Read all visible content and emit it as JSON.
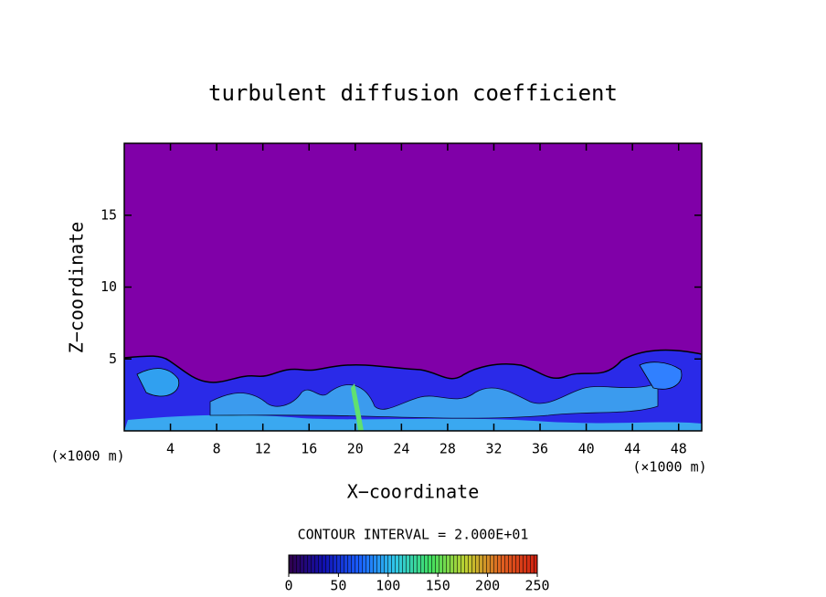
{
  "chart_data": {
    "type": "contour",
    "title": "turbulent diffusion coefficient",
    "x_label": "X−coordinate",
    "y_label": "Z−coordinate",
    "y_unit_label": "(×1000 m)",
    "x_unit_label": "(×1000 m)",
    "xlim": [
      0,
      50
    ],
    "ylim": [
      0,
      20
    ],
    "xticks": [
      4,
      8,
      12,
      16,
      20,
      24,
      28,
      32,
      36,
      40,
      44,
      48
    ],
    "yticks": [
      5,
      10,
      15
    ],
    "background_color": "#8000a8",
    "contour_interval_label": "CONTOUR INTERVAL = 2.000E+01",
    "colorbar": {
      "lim": [
        0,
        250
      ],
      "ticks": [
        0,
        50,
        100,
        150,
        200,
        250
      ],
      "colors": [
        "#30004a",
        "#1010b0",
        "#1a60ff",
        "#30c8e8",
        "#40e060",
        "#c0d030",
        "#e06020",
        "#d02010"
      ]
    }
  }
}
